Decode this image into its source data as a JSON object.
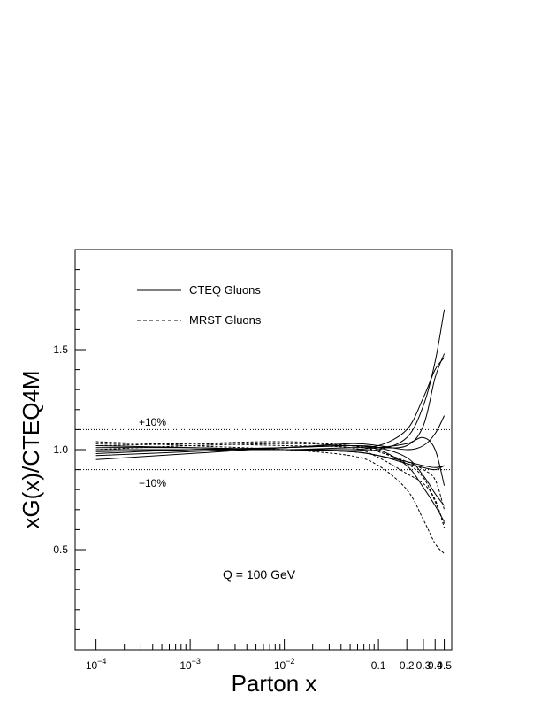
{
  "chart_data": {
    "type": "line",
    "xlabel": "Parton x",
    "ylabel": "xG(x)/CTEQ4M",
    "x_scale": "log",
    "xlim": [
      6e-05,
      0.6
    ],
    "ylim": [
      0,
      2.0
    ],
    "x_ticks": [
      {
        "value": 0.0001,
        "base": "10",
        "exp": "−4"
      },
      {
        "value": 0.001,
        "base": "10",
        "exp": "−3"
      },
      {
        "value": 0.01,
        "base": "10",
        "exp": "−2"
      },
      {
        "value": 0.1,
        "label": "0.1"
      },
      {
        "value": 0.2,
        "label": "0.2"
      },
      {
        "value": 0.3,
        "label": "0.3"
      },
      {
        "value": 0.4,
        "label": "0.4"
      },
      {
        "value": 0.5,
        "label": "0.5"
      }
    ],
    "y_ticks": [
      {
        "value": 0.5,
        "label": "0.5"
      },
      {
        "value": 1.0,
        "label": "1.0"
      },
      {
        "value": 1.5,
        "label": "1.5"
      }
    ],
    "reference_lines": [
      {
        "y": 1.1,
        "label": "+10%",
        "style": "dotted"
      },
      {
        "y": 0.9,
        "label": "−10%",
        "style": "dotted"
      }
    ],
    "annotation": "Q = 100 GeV",
    "legend": [
      {
        "label": "CTEQ Gluons",
        "style": "solid"
      },
      {
        "label": "MRST Gluons",
        "style": "dashed"
      }
    ],
    "legend_position": "top-left",
    "series": [
      {
        "group": "CTEQ",
        "style": "solid",
        "x": [
          0.0001,
          0.001,
          0.01,
          0.05,
          0.1,
          0.2,
          0.3,
          0.4,
          0.5
        ],
        "y": [
          1.0,
          1.0,
          1.0,
          1.0,
          1.0,
          1.06,
          1.22,
          1.44,
          1.7
        ]
      },
      {
        "group": "CTEQ",
        "style": "solid",
        "x": [
          0.0001,
          0.001,
          0.01,
          0.05,
          0.1,
          0.2,
          0.3,
          0.4,
          0.5
        ],
        "y": [
          0.99,
          1.0,
          1.01,
          1.02,
          1.02,
          1.1,
          1.26,
          1.4,
          1.46
        ]
      },
      {
        "group": "CTEQ",
        "style": "solid",
        "x": [
          0.0001,
          0.001,
          0.01,
          0.05,
          0.1,
          0.2,
          0.3,
          0.4,
          0.5
        ],
        "y": [
          1.01,
          1.01,
          1.0,
          1.01,
          1.01,
          1.02,
          1.12,
          1.36,
          1.48
        ]
      },
      {
        "group": "CTEQ",
        "style": "solid",
        "x": [
          0.0001,
          0.001,
          0.01,
          0.05,
          0.1,
          0.2,
          0.3,
          0.4,
          0.5
        ],
        "y": [
          0.98,
          1.0,
          1.01,
          1.03,
          1.02,
          1.0,
          1.02,
          1.08,
          1.17
        ]
      },
      {
        "group": "CTEQ",
        "style": "solid",
        "x": [
          0.0001,
          0.001,
          0.01,
          0.05,
          0.1,
          0.2,
          0.3,
          0.4,
          0.5
        ],
        "y": [
          1.02,
          1.01,
          1.0,
          1.0,
          1.01,
          1.03,
          1.06,
          1.0,
          0.82
        ]
      },
      {
        "group": "CTEQ",
        "style": "solid",
        "x": [
          0.0001,
          0.001,
          0.01,
          0.05,
          0.1,
          0.2,
          0.3,
          0.4,
          0.5
        ],
        "y": [
          1.0,
          1.0,
          1.0,
          0.99,
          0.97,
          0.93,
          0.91,
          0.9,
          0.92
        ]
      },
      {
        "group": "CTEQ",
        "style": "solid",
        "x": [
          0.0001,
          0.001,
          0.01,
          0.05,
          0.1,
          0.2,
          0.3,
          0.4,
          0.5
        ],
        "y": [
          1.0,
          1.0,
          1.0,
          0.99,
          0.97,
          0.94,
          0.92,
          0.91,
          0.92
        ]
      },
      {
        "group": "CTEQ",
        "style": "solid",
        "x": [
          0.0001,
          0.001,
          0.01,
          0.05,
          0.1,
          0.2,
          0.3,
          0.4,
          0.5
        ],
        "y": [
          0.97,
          0.99,
          1.01,
          1.02,
          1.01,
          0.96,
          0.87,
          0.78,
          0.72
        ]
      },
      {
        "group": "CTEQ",
        "style": "solid",
        "x": [
          0.0001,
          0.001,
          0.01,
          0.05,
          0.1,
          0.2,
          0.3,
          0.4,
          0.5
        ],
        "y": [
          0.95,
          0.98,
          1.01,
          1.02,
          1.0,
          0.92,
          0.81,
          0.72,
          0.64
        ]
      },
      {
        "group": "MRST",
        "style": "dashed",
        "x": [
          0.0001,
          0.001,
          0.01,
          0.05,
          0.1,
          0.2,
          0.3,
          0.4,
          0.5
        ],
        "y": [
          1.04,
          1.02,
          1.0,
          0.97,
          0.92,
          0.8,
          0.65,
          0.53,
          0.48
        ]
      },
      {
        "group": "MRST",
        "style": "dashed",
        "x": [
          0.0001,
          0.001,
          0.01,
          0.05,
          0.1,
          0.2,
          0.3,
          0.4,
          0.5
        ],
        "y": [
          1.03,
          1.03,
          1.02,
          1.01,
          0.96,
          0.88,
          0.83,
          0.75,
          0.61
        ]
      },
      {
        "group": "MRST",
        "style": "dashed",
        "x": [
          0.0001,
          0.001,
          0.01,
          0.05,
          0.1,
          0.2,
          0.3,
          0.4,
          0.5
        ],
        "y": [
          1.02,
          1.03,
          1.04,
          1.02,
          0.99,
          0.94,
          0.9,
          0.85,
          0.7
        ]
      },
      {
        "group": "MRST",
        "style": "dashed",
        "x": [
          0.0001,
          0.001,
          0.01,
          0.05,
          0.1,
          0.2,
          0.3,
          0.4,
          0.5
        ],
        "y": [
          1.0,
          1.02,
          1.03,
          1.02,
          0.99,
          0.93,
          0.86,
          0.74,
          0.63
        ]
      }
    ]
  }
}
